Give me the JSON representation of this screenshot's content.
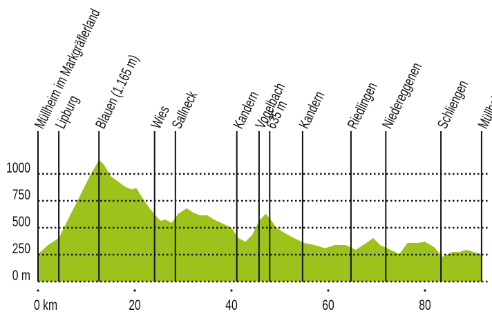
{
  "chart_data": {
    "type": "area",
    "x": [
      0,
      2.1,
      4.3,
      6.4,
      8.6,
      10.7,
      12.6,
      13.6,
      15,
      16.4,
      17.9,
      19.3,
      20.3,
      21.4,
      22.9,
      24.3,
      25.3,
      26.4,
      27.6,
      29,
      30.7,
      32.1,
      33.6,
      35,
      36.4,
      37.9,
      40,
      41.4,
      42.9,
      44.3,
      45.7,
      47.1,
      48.1,
      49.3,
      51,
      52.9,
      55,
      57.1,
      59.3,
      61.4,
      63.6,
      65.7,
      67.9,
      69.3,
      70.7,
      72.9,
      74.7,
      76.4,
      78.6,
      80,
      81.9,
      83.6,
      85.7,
      87.1,
      88.6,
      90.4,
      91.7
    ],
    "values": [
      255,
      340,
      405,
      595,
      790,
      980,
      1130,
      1090,
      980,
      935,
      885,
      855,
      870,
      790,
      690,
      615,
      565,
      575,
      545,
      630,
      680,
      640,
      615,
      615,
      575,
      545,
      500,
      405,
      370,
      435,
      565,
      630,
      575,
      500,
      450,
      405,
      360,
      340,
      310,
      340,
      340,
      295,
      360,
      405,
      340,
      295,
      255,
      360,
      360,
      370,
      320,
      230,
      275,
      275,
      295,
      270,
      255
    ],
    "color": "#9cc21b",
    "xlim": [
      0,
      92
    ],
    "ylim": [
      0,
      1000
    ],
    "xticks": [
      {
        "value": 0,
        "label": "0 km"
      },
      20,
      40,
      60,
      80
    ],
    "yticks": [
      {
        "value": 0,
        "label": "0 m"
      },
      250,
      500,
      750,
      1000
    ],
    "grid": true,
    "markers": [
      {
        "label": "Müllheim im Markgräflerland",
        "x": 0
      },
      {
        "label": "Lipburg",
        "x": 4.3
      },
      {
        "label": "Blauen (1.165 m)",
        "x": 12.6
      },
      {
        "label": "Wies",
        "x": 24.1
      },
      {
        "label": "Sallneck",
        "x": 28.4
      },
      {
        "label": "Kandern",
        "x": 41.1
      },
      {
        "label": "Vogelbach",
        "x": 45.7
      },
      {
        "label": "635 m",
        "x": 47.9
      },
      {
        "label": "Kandern",
        "x": 54.7
      },
      {
        "label": "Riedlingen",
        "x": 64.7
      },
      {
        "label": "Niedereggenen",
        "x": 71.9
      },
      {
        "label": "Schliengen",
        "x": 83.3
      },
      {
        "label": "Müllheim",
        "x": 91.7
      }
    ]
  }
}
